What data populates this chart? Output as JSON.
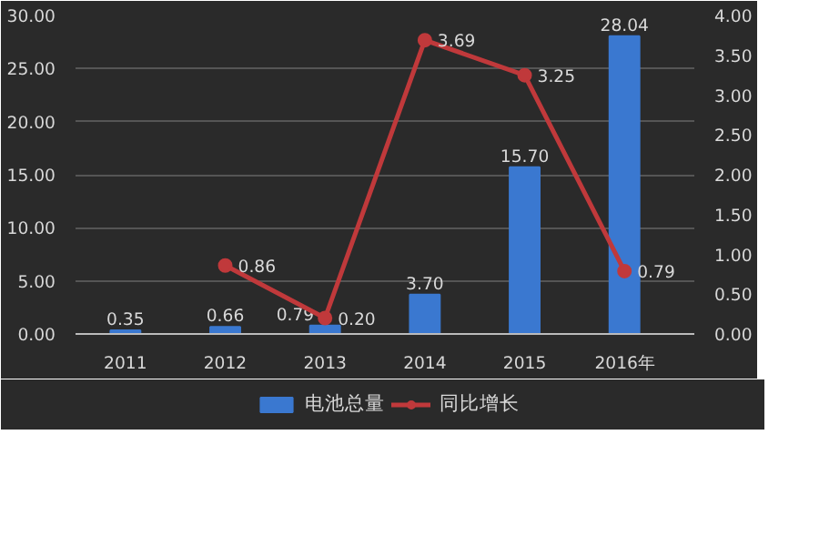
{
  "chart_data": {
    "type": "bar",
    "categories": [
      "2011",
      "2012",
      "2013",
      "2014",
      "2015",
      "2016年"
    ],
    "series": [
      {
        "name": "电池总量",
        "color": "#3a78d0",
        "values": [
          0.35,
          0.66,
          0.79,
          3.7,
          15.7,
          28.04
        ],
        "value_labels": [
          "0.35",
          "0.66",
          "0.79",
          "3.70",
          "15.70",
          "28.04"
        ]
      },
      {
        "name": "同比增长",
        "type": "line",
        "axis": "y2",
        "color": "#c0393b",
        "values": [
          null,
          0.86,
          0.2,
          3.69,
          3.25,
          0.79
        ],
        "value_labels": [
          null,
          "0.86",
          "0.20",
          "3.69",
          "3.25",
          "0.79"
        ]
      }
    ],
    "ylim": [
      0,
      30
    ],
    "yticks": [
      {
        "value": 0,
        "label": "0.00"
      },
      {
        "value": 5,
        "label": "5.00"
      },
      {
        "value": 10,
        "label": "10.00"
      },
      {
        "value": 15,
        "label": "15.00"
      },
      {
        "value": 20,
        "label": "20.00"
      },
      {
        "value": 25,
        "label": "25.00"
      },
      {
        "value": 30,
        "label": "30.00"
      }
    ],
    "y2lim": [
      0,
      4
    ],
    "y2ticks": [
      {
        "value": 0,
        "label": "0.00"
      },
      {
        "value": 0.5,
        "label": "0.50"
      },
      {
        "value": 1,
        "label": "1.00"
      },
      {
        "value": 1.5,
        "label": "1.50"
      },
      {
        "value": 2,
        "label": "2.00"
      },
      {
        "value": 2.5,
        "label": "2.50"
      },
      {
        "value": 3,
        "label": "3.00"
      },
      {
        "value": 3.5,
        "label": "3.50"
      },
      {
        "value": 4,
        "label": "4.00"
      }
    ],
    "grid": "y",
    "legend": "bottom",
    "marker": "circle"
  }
}
